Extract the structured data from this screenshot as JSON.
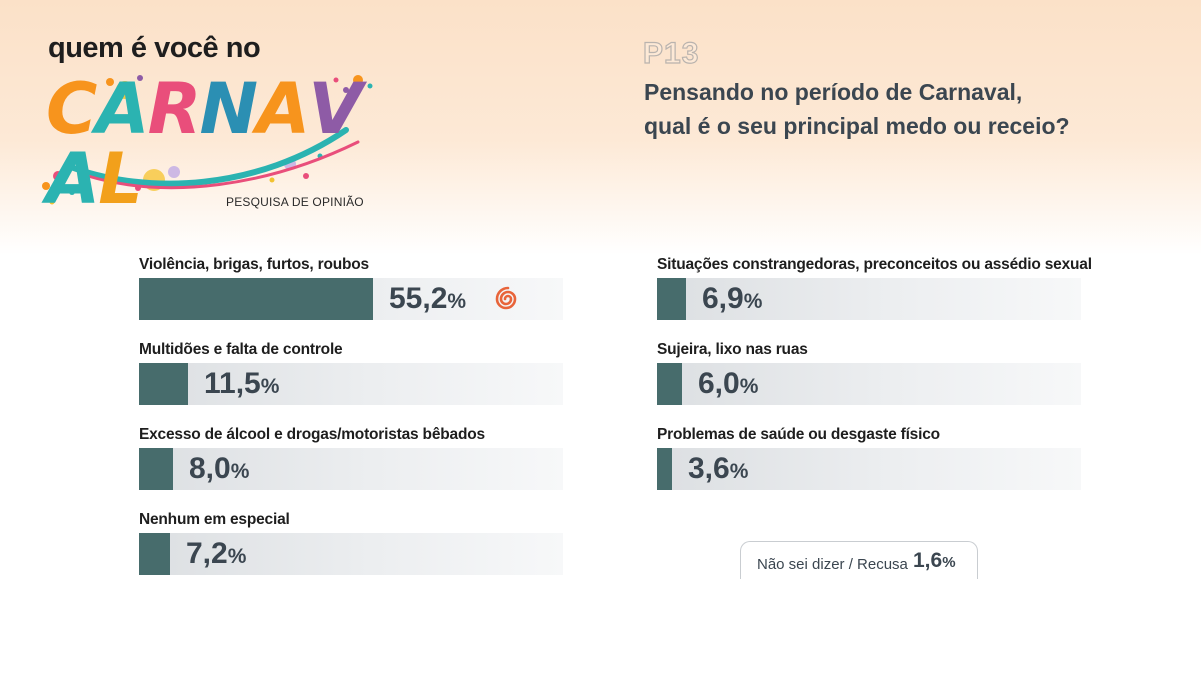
{
  "brand": {
    "title": "quem é você no",
    "logo_word": "CARNAVAL",
    "subtitle": "PESQUISA DE OPINIÃO",
    "logo_colors": [
      "#f7941d",
      "#2bb3b1",
      "#e94e7b",
      "#8e5ba6",
      "#f2c230"
    ]
  },
  "question": {
    "code": "P13",
    "line1": "Pensando no período de Carnaval,",
    "line2": "qual é o seu principal medo ou receio?"
  },
  "colors": {
    "bar": "#476c6c",
    "value_text": "#3b4650",
    "accent": "#e8643a"
  },
  "icons": {
    "brand_mark": "spiral-icon"
  },
  "chart_data": {
    "type": "bar",
    "orientation": "horizontal",
    "unit": "%",
    "xlim": [
      0,
      100
    ],
    "grid": false,
    "legend": "none",
    "categories": [
      "Violência, brigas, furtos, roubos",
      "Multidões e falta de controle",
      "Excesso de álcool e drogas/motoristas bêbados",
      "Nenhum em especial",
      "Situações constrangedoras, preconceitos ou assédio sexual",
      "Sujeira, lixo nas ruas",
      "Problemas de saúde ou desgaste físico"
    ],
    "values": [
      55.2,
      11.5,
      8.0,
      7.2,
      6.9,
      6.0,
      3.6
    ],
    "value_labels": [
      "55,2",
      "11,5",
      "8,0",
      "7,2",
      "6,9",
      "6,0",
      "3,6"
    ],
    "other": {
      "label": "Não sei dizer / Recusa",
      "value": 1.6,
      "value_label": "1,6"
    }
  }
}
